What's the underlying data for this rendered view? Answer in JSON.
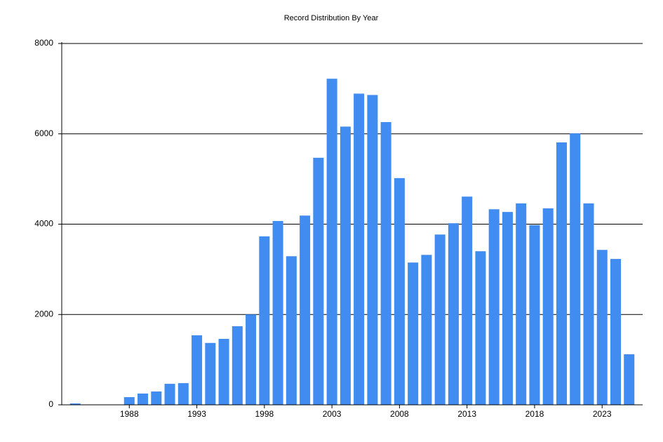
{
  "chart_data": {
    "type": "bar",
    "title": "Record Distribution By Year",
    "x": [
      1984,
      1988,
      1989,
      1990,
      1991,
      1992,
      1993,
      1994,
      1995,
      1996,
      1997,
      1998,
      1999,
      2000,
      2001,
      2002,
      2003,
      2004,
      2005,
      2006,
      2007,
      2008,
      2009,
      2010,
      2011,
      2012,
      2013,
      2014,
      2015,
      2016,
      2017,
      2018,
      2019,
      2020,
      2021,
      2022,
      2023,
      2024,
      2025
    ],
    "values": [
      30,
      170,
      250,
      295,
      465,
      480,
      1540,
      1370,
      1460,
      1740,
      2000,
      3730,
      4070,
      3290,
      4190,
      5470,
      7220,
      6160,
      6890,
      6860,
      6260,
      5020,
      3150,
      3320,
      3770,
      4020,
      4610,
      3400,
      4330,
      4270,
      4460,
      3980,
      4350,
      5810,
      6010,
      4460,
      3430,
      3230,
      1120
    ],
    "color": "#418cf0",
    "xlim": [
      1983,
      2026
    ],
    "xticks": [
      1988,
      1993,
      1998,
      2003,
      2008,
      2013,
      2018,
      2023
    ],
    "ylim": [
      0,
      8000
    ],
    "yticks": [
      0,
      2000,
      4000,
      6000,
      8000
    ],
    "grid": true
  }
}
